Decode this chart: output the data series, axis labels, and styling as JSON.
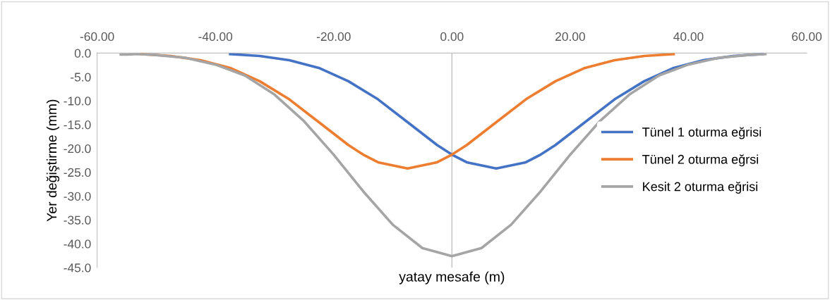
{
  "chart_data": {
    "type": "line",
    "xlabel": "yatay mesafe (m)",
    "ylabel": "Yer değiştirme (mm)",
    "xlim": [
      -60,
      60
    ],
    "ylim": [
      -45,
      0
    ],
    "xticks": [
      {
        "value": -60,
        "label": "-60.00"
      },
      {
        "value": -40,
        "label": "-40.00"
      },
      {
        "value": -20,
        "label": "-20.00"
      },
      {
        "value": 0,
        "label": "0.00"
      },
      {
        "value": 20,
        "label": "20.00"
      },
      {
        "value": 40,
        "label": "40.00"
      },
      {
        "value": 60,
        "label": "60.00"
      }
    ],
    "yticks": [
      {
        "value": 0,
        "label": "0.0"
      },
      {
        "value": -5,
        "label": "-5.0"
      },
      {
        "value": -10,
        "label": "-10.0"
      },
      {
        "value": -15,
        "label": "-15.0"
      },
      {
        "value": -20,
        "label": "-20.0"
      },
      {
        "value": -25,
        "label": "-25.0"
      },
      {
        "value": -30,
        "label": "-30.0"
      },
      {
        "value": -35,
        "label": "-35.0"
      },
      {
        "value": -40,
        "label": "-40.0"
      },
      {
        "value": -45,
        "label": "-45.0"
      }
    ],
    "ref_lines": [
      {
        "axis": "x",
        "value": 0,
        "color": "#bfbfbf"
      }
    ],
    "grid": false,
    "legend": "right",
    "marker": "none",
    "line_style": "solid",
    "series": [
      {
        "name": "Tünel 1 oturma eğrisi",
        "color": "#4472c4",
        "x": [
          -37.5,
          -32.5,
          -27.5,
          -22.5,
          -17.5,
          -12.5,
          -7.5,
          -2.5,
          0,
          2.5,
          7.5,
          12.5,
          15,
          17.5,
          22.5,
          27.5,
          32.5,
          37.5,
          42.5,
          47.5,
          52.5
        ],
        "values": [
          -0.2,
          -0.6,
          -1.5,
          -3.1,
          -5.9,
          -9.7,
          -14.5,
          -19.3,
          -21.3,
          -22.9,
          -24.2,
          -22.9,
          -21.3,
          -19.3,
          -14.5,
          -9.7,
          -5.9,
          -3.1,
          -1.5,
          -0.6,
          -0.2
        ]
      },
      {
        "name": "Tünel 2 oturma eğrsi",
        "color": "#ed7d31",
        "x": [
          -52.5,
          -47.5,
          -42.5,
          -37.5,
          -32.5,
          -27.5,
          -22.5,
          -17.5,
          -15,
          -12.5,
          -7.5,
          -2.5,
          0,
          2.5,
          7.5,
          12.5,
          17.5,
          22.5,
          27.5,
          32.5,
          37.5
        ],
        "values": [
          -0.2,
          -0.6,
          -1.5,
          -3.1,
          -5.9,
          -9.7,
          -14.5,
          -19.3,
          -21.3,
          -22.9,
          -24.2,
          -22.9,
          -21.3,
          -19.3,
          -14.5,
          -9.7,
          -5.9,
          -3.1,
          -1.5,
          -0.6,
          -0.2
        ]
      },
      {
        "name": "Kesit 2 oturma eğrisi",
        "color": "#a5a5a5",
        "x": [
          -56,
          -55,
          -53,
          -50,
          -45,
          -40,
          -35,
          -30,
          -25,
          -20,
          -15,
          -10,
          -5,
          0,
          5,
          10,
          15,
          20,
          25,
          30,
          35,
          40,
          45,
          50,
          53
        ],
        "values": [
          -0.3,
          -0.3,
          -0.2,
          -0.4,
          -1.0,
          -2.4,
          -4.7,
          -8.7,
          -14.3,
          -21.3,
          -29.0,
          -36.0,
          -40.9,
          -42.6,
          -40.9,
          -36.0,
          -29.0,
          -21.3,
          -14.3,
          -8.7,
          -4.7,
          -2.4,
          -1.0,
          -0.4,
          -0.2
        ]
      }
    ]
  }
}
